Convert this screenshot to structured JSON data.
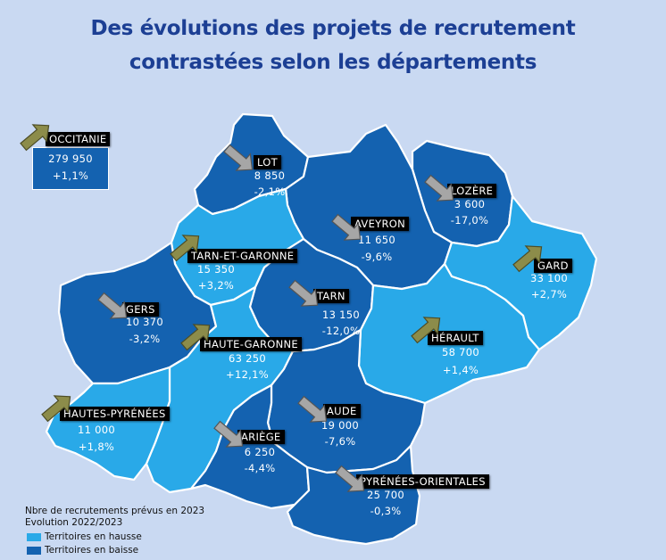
{
  "title_line1": "Des évolutions des projets de recrutement",
  "title_line2": "contrastées selon les départements",
  "colors": {
    "rise": "#29a9e8",
    "fall": "#1462b0",
    "background": "#c9d9f2",
    "title": "#1c3f94"
  },
  "region": {
    "name": "OCCITANIE",
    "value": "279 950",
    "evolution": "+1,1%",
    "trend": "up"
  },
  "departments": {
    "lot": {
      "name": "LOT",
      "value": "8 850",
      "evolution": "-2,1%",
      "trend": "down"
    },
    "lozere": {
      "name": "LOZÈRE",
      "value": "3 600",
      "evolution": "-17,0%",
      "trend": "down"
    },
    "aveyron": {
      "name": "AVEYRON",
      "value": "11 650",
      "evolution": "-9,6%",
      "trend": "down"
    },
    "tarn_et_garonne": {
      "name": "TARN-ET-GARONNE",
      "value": "15 350",
      "evolution": "+3,2%",
      "trend": "up"
    },
    "gard": {
      "name": "GARD",
      "value": "33 100",
      "evolution": "+2,7%",
      "trend": "up"
    },
    "gers": {
      "name": "GERS",
      "value": "10 370",
      "evolution": "-3,2%",
      "trend": "down"
    },
    "tarn": {
      "name": "TARN",
      "value": "13 150",
      "evolution": "-12,0%",
      "trend": "down"
    },
    "herault": {
      "name": "HÉRAULT",
      "value": "58 700",
      "evolution": "+1,4%",
      "trend": "up"
    },
    "haute_garonne": {
      "name": "HAUTE-GARONNE",
      "value": "63 250",
      "evolution": "+12,1%",
      "trend": "up"
    },
    "hautes_pyrenees": {
      "name": "HAUTES-PYRÉNÉES",
      "value": "11 000",
      "evolution": "+1,8%",
      "trend": "up"
    },
    "aude": {
      "name": "AUDE",
      "value": "19 000",
      "evolution": "-7,6%",
      "trend": "down"
    },
    "ariege": {
      "name": "ARIÈGE",
      "value": "6 250",
      "evolution": "-4,4%",
      "trend": "down"
    },
    "pyrenees_orientales": {
      "name": "PYRÉNÉES-ORIENTALES",
      "value": "25 700",
      "evolution": "-0,3%",
      "trend": "down"
    }
  },
  "legend": {
    "line1": "Nbre de recrutements prévus en 2023",
    "line2": "Evolution 2022/2023",
    "rise_label": "Territoires en hausse",
    "fall_label": "Territoires en baisse"
  }
}
